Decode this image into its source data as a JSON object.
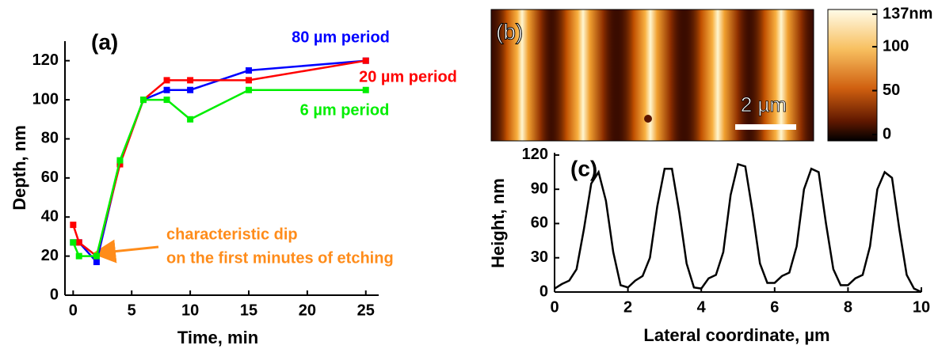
{
  "chart_data": [
    {
      "type": "line",
      "panel_label": "(a)",
      "x_label": "Time, min",
      "y_label": "Depth, nm",
      "x": [
        0,
        0.5,
        2,
        4,
        6,
        8,
        10,
        15,
        25
      ],
      "series": [
        {
          "name": "80 µm period",
          "color": "#0000ff",
          "values": [
            27,
            27,
            17,
            68,
            100,
            105,
            105,
            115,
            120
          ]
        },
        {
          "name": "20 µm period",
          "color": "#ff0000",
          "values": [
            36,
            27,
            20,
            67,
            100,
            110,
            110,
            110,
            120
          ]
        },
        {
          "name": "6 µm period",
          "color": "#00ee00",
          "values": [
            27,
            20,
            20,
            69,
            100,
            100,
            90,
            105,
            105
          ]
        }
      ],
      "annotation": [
        "characteristic dip",
        "on the first minutes of etching"
      ],
      "annotation_color": "#ff8c1a",
      "xlim": [
        -0.7,
        26.1
      ],
      "ylim": [
        0,
        130
      ],
      "xticks": [
        0,
        5,
        10,
        15,
        20,
        25
      ],
      "yticks": [
        0,
        20,
        40,
        60,
        80,
        100,
        120
      ]
    },
    {
      "type": "image",
      "panel_label": "(b)",
      "scale_bar_label": "2 µm",
      "colorbar_lim": [
        0,
        137
      ],
      "colorbar_ticks": [
        {
          "value": 137,
          "label": "137nm"
        },
        100,
        50,
        0
      ]
    },
    {
      "type": "line",
      "panel_label": "(c)",
      "x_label": "Lateral coordinate, µm",
      "y_label": "Height, nm",
      "x": [
        0,
        0.2,
        0.4,
        0.6,
        0.8,
        1,
        1.2,
        1.4,
        1.6,
        1.8,
        2,
        2.2,
        2.4,
        2.6,
        2.8,
        3,
        3.2,
        3.4,
        3.6,
        3.8,
        4,
        4.2,
        4.4,
        4.6,
        4.8,
        5,
        5.2,
        5.4,
        5.6,
        5.8,
        6,
        6.2,
        6.4,
        6.6,
        6.8,
        7,
        7.2,
        7.4,
        7.6,
        7.8,
        8,
        8.2,
        8.4,
        8.6,
        8.8,
        9,
        9.2,
        9.4,
        9.6,
        9.8,
        10
      ],
      "series": [
        {
          "color": "#000000",
          "values": [
            3,
            7,
            10,
            20,
            55,
            95,
            105,
            80,
            35,
            6,
            4,
            10,
            14,
            30,
            75,
            108,
            108,
            70,
            25,
            4,
            3,
            12,
            15,
            35,
            85,
            112,
            110,
            70,
            25,
            8,
            8,
            14,
            17,
            40,
            90,
            108,
            105,
            60,
            20,
            6,
            6,
            12,
            15,
            40,
            90,
            105,
            100,
            55,
            15,
            3,
            0
          ]
        }
      ],
      "xlim": [
        0,
        10
      ],
      "ylim": [
        0,
        122
      ],
      "xticks": [
        0,
        2,
        4,
        6,
        8,
        10
      ],
      "yticks": [
        0,
        30,
        60,
        90,
        120
      ]
    }
  ]
}
